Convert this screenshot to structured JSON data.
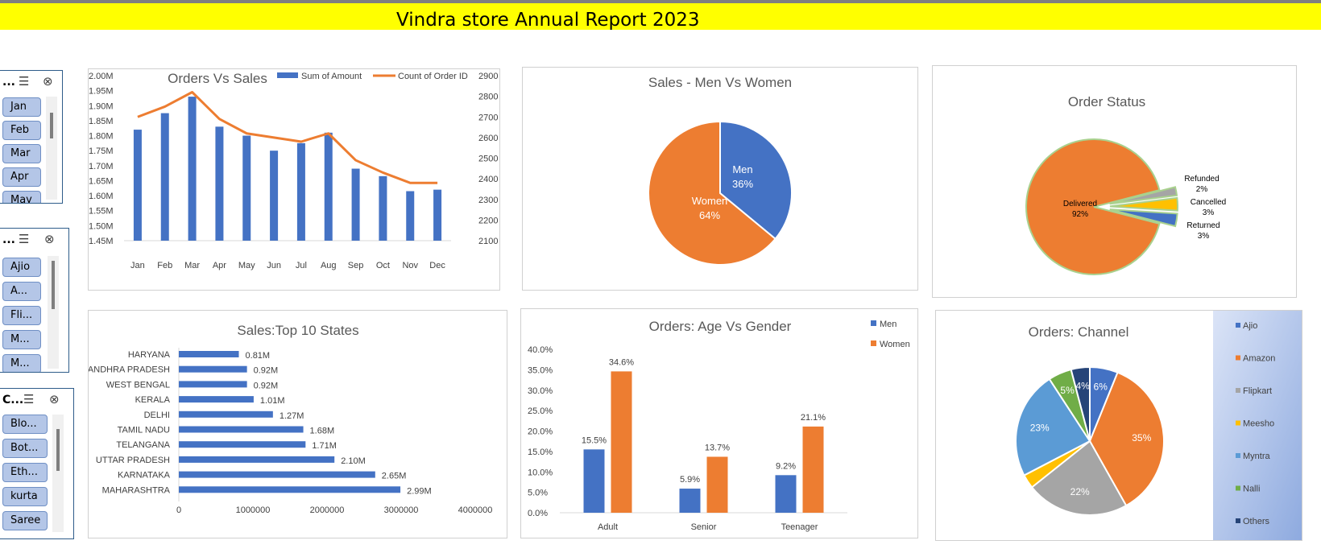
{
  "report_title": "Vindra store Annual Report 2023",
  "slicers": [
    {
      "title": "...",
      "items": [
        "Jan",
        "Feb",
        "Mar",
        "Apr",
        "May"
      ]
    },
    {
      "title": "...",
      "items": [
        "Ajio",
        "A...",
        "Fli...",
        "M...",
        "M..."
      ]
    },
    {
      "title": "C...",
      "items": [
        "Blo...",
        "Bot...",
        "Eth...",
        "kurta",
        "Saree"
      ]
    }
  ],
  "colors": {
    "blue": "#4472c4",
    "orange": "#ed7d31",
    "gray": "#a5a5a5",
    "yellow": "#ffc000",
    "lightblue": "#5b9bd5",
    "green": "#70ad47",
    "navy": "#264478"
  },
  "chart_data": [
    {
      "type": "bar",
      "title": "Orders Vs Sales",
      "categories": [
        "Jan",
        "Feb",
        "Mar",
        "Apr",
        "May",
        "Jun",
        "Jul",
        "Aug",
        "Sep",
        "Oct",
        "Nov",
        "Dec"
      ],
      "series": [
        {
          "name": "Sum of Amount",
          "type": "bar",
          "axis": "left",
          "values": [
            1.82,
            1.875,
            1.93,
            1.83,
            1.8,
            1.75,
            1.775,
            1.81,
            1.69,
            1.665,
            1.615,
            1.62
          ]
        },
        {
          "name": "Count of Order ID",
          "type": "line",
          "axis": "right",
          "values": [
            2700,
            2750,
            2820,
            2690,
            2620,
            2600,
            2580,
            2620,
            2490,
            2430,
            2380,
            2380
          ]
        }
      ],
      "ylim": [
        1.45,
        2.0
      ],
      "y_ticks": [
        "1.45M",
        "1.50M",
        "1.55M",
        "1.60M",
        "1.65M",
        "1.70M",
        "1.75M",
        "1.80M",
        "1.85M",
        "1.90M",
        "1.95M",
        "2.00M"
      ],
      "y2lim": [
        2100,
        2900
      ],
      "y2_ticks": [
        "2100",
        "2200",
        "2300",
        "2400",
        "2500",
        "2600",
        "2700",
        "2800",
        "2900"
      ],
      "legend": "top"
    },
    {
      "type": "pie",
      "title": "Sales - Men Vs Women",
      "labels": [
        "Men",
        "Women"
      ],
      "values": [
        36,
        64
      ],
      "value_labels": [
        "36%",
        "64%"
      ]
    },
    {
      "type": "pie",
      "title": "Order Status",
      "labels": [
        "Delivered",
        "Refunded",
        "Cancelled",
        "Returned"
      ],
      "values": [
        92,
        2,
        3,
        3
      ],
      "value_labels": [
        "92%",
        "2%",
        "3%",
        "3%"
      ]
    },
    {
      "type": "bar",
      "orientation": "horizontal",
      "title": "Sales:Top 10 States",
      "categories": [
        "HARYANA",
        "ANDHRA PRADESH",
        "WEST BENGAL",
        "KERALA",
        "DELHI",
        "TAMIL NADU",
        "TELANGANA",
        "UTTAR PRADESH",
        "KARNATAKA",
        "MAHARASHTRA"
      ],
      "values": [
        810000,
        920000,
        920000,
        1010000,
        1270000,
        1680000,
        1710000,
        2100000,
        2650000,
        2990000
      ],
      "value_labels": [
        "0.81M",
        "0.92M",
        "0.92M",
        "1.01M",
        "1.27M",
        "1.68M",
        "1.71M",
        "2.10M",
        "2.65M",
        "2.99M"
      ],
      "xlim": [
        0,
        4000000
      ],
      "x_ticks": [
        "0",
        "1000000",
        "2000000",
        "3000000",
        "4000000"
      ]
    },
    {
      "type": "bar",
      "title": "Orders: Age Vs Gender",
      "categories": [
        "Adult",
        "Senior",
        "Teenager"
      ],
      "series": [
        {
          "name": "Men",
          "values": [
            15.5,
            5.9,
            9.2
          ],
          "value_labels": [
            "15.5%",
            "5.9%",
            "9.2%"
          ]
        },
        {
          "name": "Women",
          "values": [
            34.6,
            13.7,
            21.1
          ],
          "value_labels": [
            "34.6%",
            "13.7%",
            "21.1%"
          ]
        }
      ],
      "ylim": [
        0,
        40
      ],
      "y_ticks": [
        "0.0%",
        "5.0%",
        "10.0%",
        "15.0%",
        "20.0%",
        "25.0%",
        "30.0%",
        "35.0%",
        "40.0%"
      ],
      "legend": "top-right"
    },
    {
      "type": "pie",
      "title": "Orders: Channel",
      "labels": [
        "Ajio",
        "Amazon",
        "Flipkart",
        "Meesho",
        "Myntra",
        "Nalli",
        "Others"
      ],
      "values": [
        6,
        35,
        22,
        3,
        23,
        5,
        4
      ],
      "value_labels": [
        "6%",
        "35%",
        "22%",
        "",
        "23%",
        "5%",
        "4%"
      ],
      "legend": "right"
    }
  ]
}
